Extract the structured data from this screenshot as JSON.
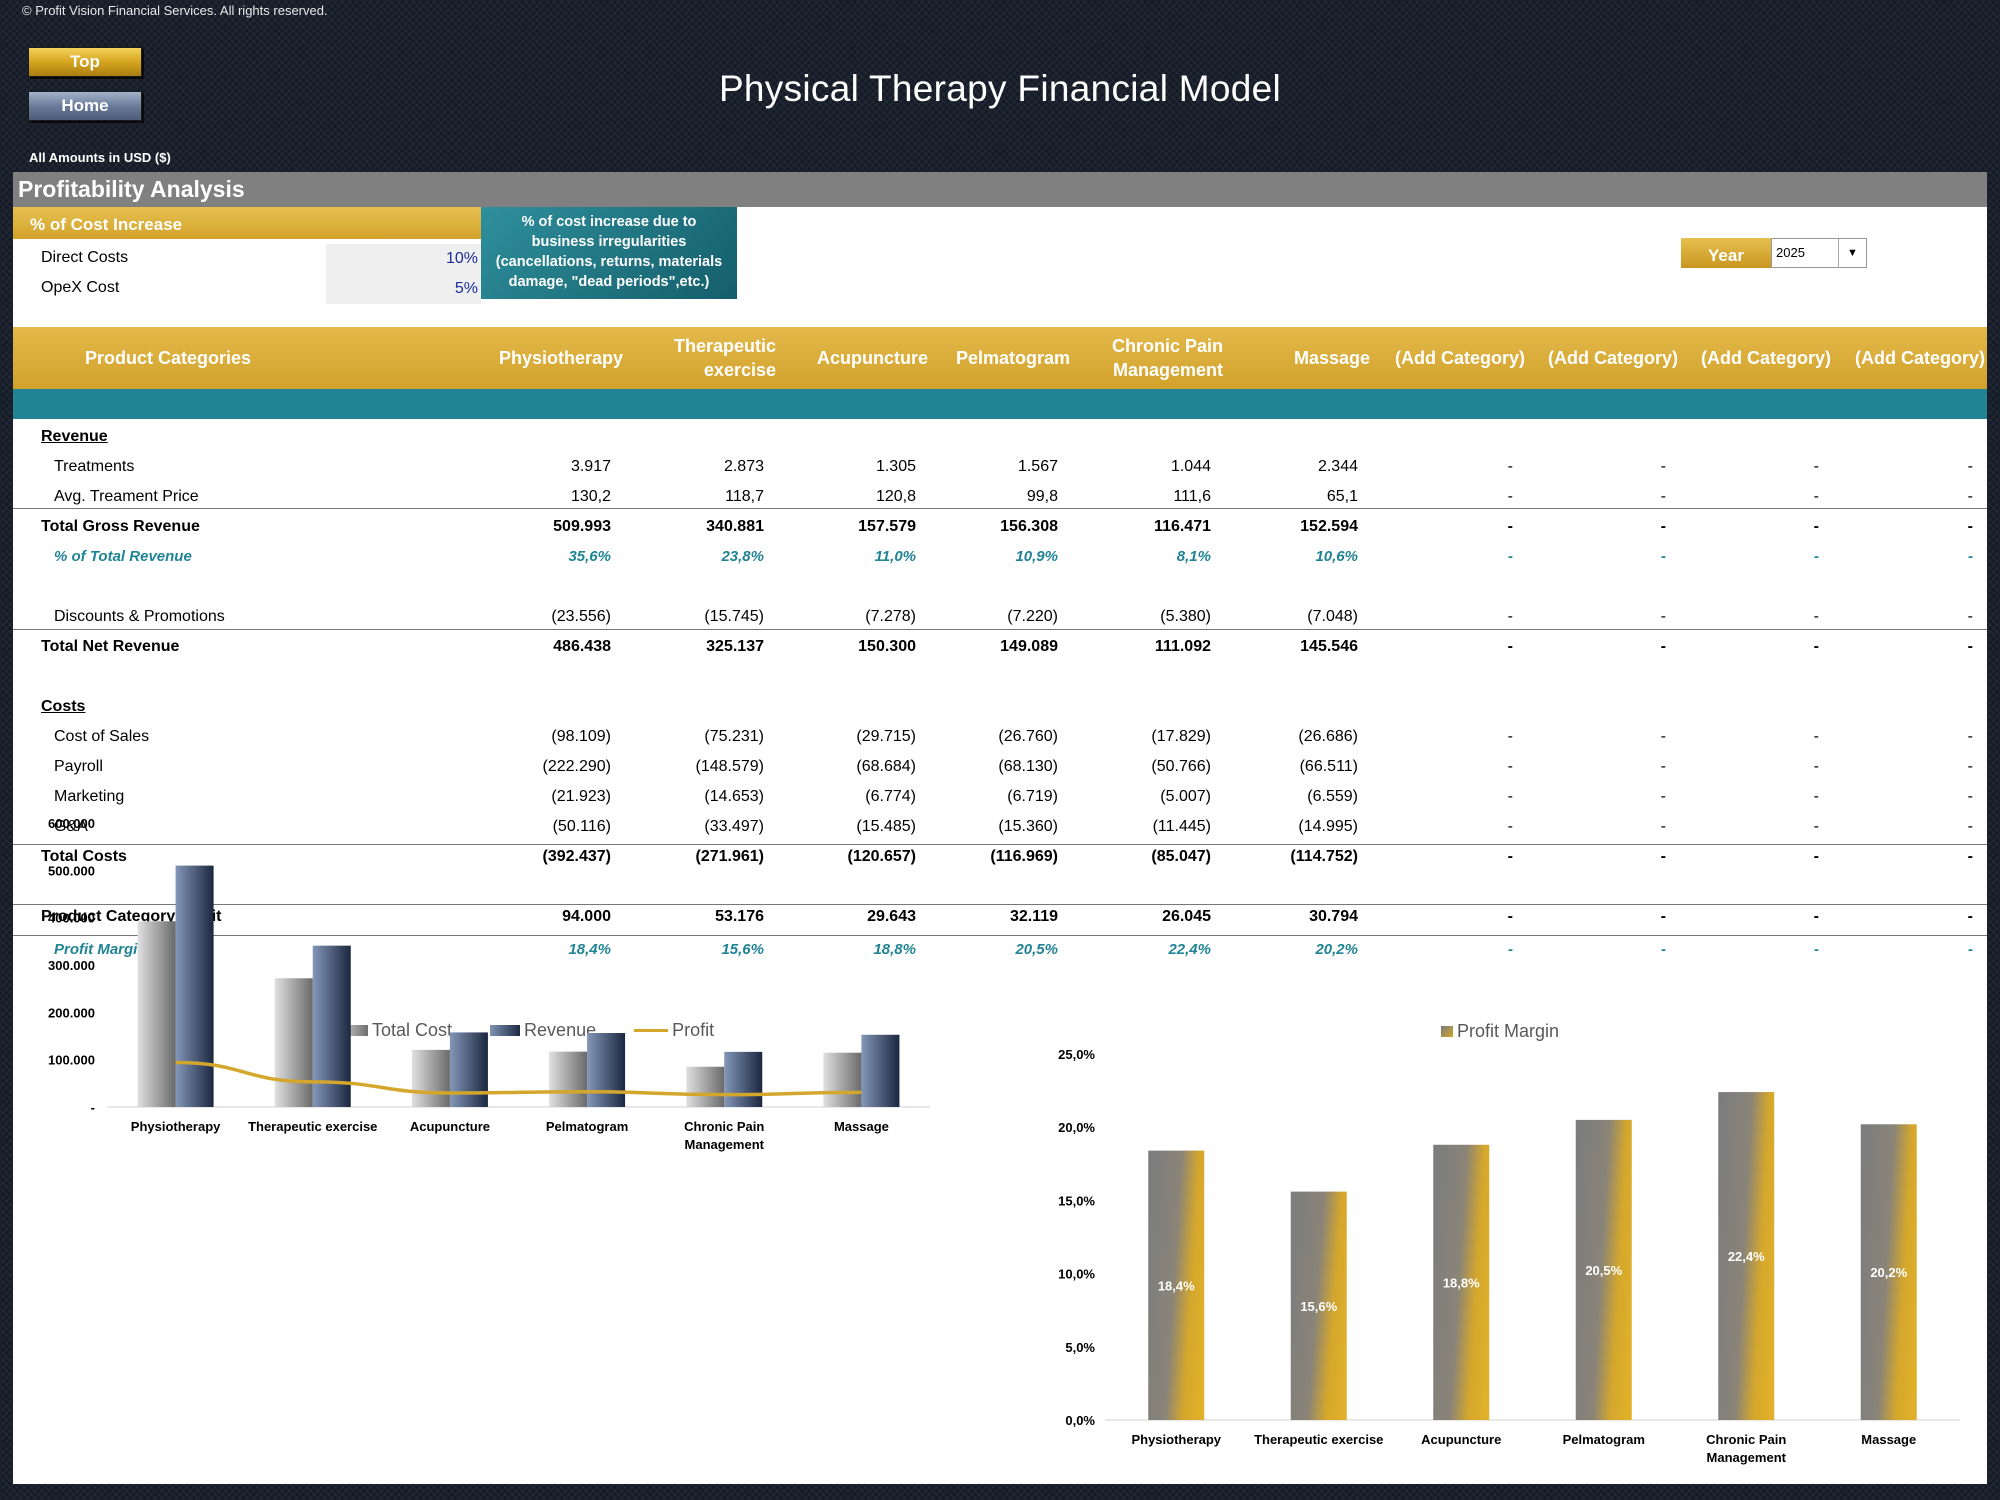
{
  "copyright": "© Profit Vision Financial Services. All rights reserved.",
  "nav": {
    "top": "Top",
    "home": "Home"
  },
  "title": "Physical Therapy Financial Model",
  "amounts_note": "All Amounts in  USD ($)",
  "section_title": "Profitability Analysis",
  "cost_increase": {
    "label": "% of Cost Increase",
    "rows": [
      {
        "label": "Direct Costs",
        "value": "10%"
      },
      {
        "label": "OpeX Cost",
        "value": "5%"
      }
    ],
    "note_lines": [
      "% of cost increase due to",
      "business irregularities",
      "(cancellations, returns, materials",
      "damage, \"dead periods\",etc.)"
    ]
  },
  "year_selector": {
    "label": "Year",
    "value": "2025"
  },
  "table": {
    "header_first": "Product Categories",
    "columns": [
      [
        "Physiotherapy"
      ],
      [
        "Therapeutic",
        "exercise"
      ],
      [
        "Acupuncture"
      ],
      [
        "Pelmatogram"
      ],
      [
        "Chronic Pain",
        "Management"
      ],
      [
        "Massage"
      ],
      [
        "(Add Category)"
      ],
      [
        "(Add Category)"
      ],
      [
        "(Add Category)"
      ],
      [
        "(Add Category)"
      ]
    ],
    "rows": [
      {
        "type": "section",
        "label": "Revenue",
        "values": []
      },
      {
        "type": "normal",
        "label": "Treatments",
        "values": [
          "3.917",
          "2.873",
          "1.305",
          "1.567",
          "1.044",
          "2.344",
          "-",
          "-",
          "-",
          "-"
        ]
      },
      {
        "type": "normal",
        "label": "Avg. Treament Price",
        "values": [
          "130,2",
          "118,7",
          "120,8",
          "99,8",
          "111,6",
          "65,1",
          "-",
          "-",
          "-",
          "-"
        ]
      },
      {
        "type": "bold",
        "label": "Total Gross Revenue",
        "values": [
          "509.993",
          "340.881",
          "157.579",
          "156.308",
          "116.471",
          "152.594",
          "-",
          "-",
          "-",
          "-"
        ]
      },
      {
        "type": "pct",
        "label": "% of Total Revenue",
        "values": [
          "35,6%",
          "23,8%",
          "11,0%",
          "10,9%",
          "8,1%",
          "10,6%",
          "-",
          "-",
          "-",
          "-"
        ]
      },
      {
        "type": "blank",
        "label": "",
        "values": []
      },
      {
        "type": "normal",
        "label": "Discounts & Promotions",
        "values": [
          "(23.556)",
          "(15.745)",
          "(7.278)",
          "(7.220)",
          "(5.380)",
          "(7.048)",
          "-",
          "-",
          "-",
          "-"
        ]
      },
      {
        "type": "bold",
        "label": "Total Net Revenue",
        "values": [
          "486.438",
          "325.137",
          "150.300",
          "149.089",
          "111.092",
          "145.546",
          "-",
          "-",
          "-",
          "-"
        ]
      },
      {
        "type": "blank",
        "label": "",
        "values": []
      },
      {
        "type": "section",
        "label": "Costs",
        "values": []
      },
      {
        "type": "normal",
        "label": "Cost of Sales",
        "values": [
          "(98.109)",
          "(75.231)",
          "(29.715)",
          "(26.760)",
          "(17.829)",
          "(26.686)",
          "-",
          "-",
          "-",
          "-"
        ]
      },
      {
        "type": "normal",
        "label": "Payroll",
        "values": [
          "(222.290)",
          "(148.579)",
          "(68.684)",
          "(68.130)",
          "(50.766)",
          "(66.511)",
          "-",
          "-",
          "-",
          "-"
        ]
      },
      {
        "type": "normal",
        "label": "Marketing",
        "values": [
          "(21.923)",
          "(14.653)",
          "(6.774)",
          "(6.719)",
          "(5.007)",
          "(6.559)",
          "-",
          "-",
          "-",
          "-"
        ]
      },
      {
        "type": "normal",
        "label": "G&A",
        "values": [
          "(50.116)",
          "(33.497)",
          "(15.485)",
          "(15.360)",
          "(11.445)",
          "(14.995)",
          "-",
          "-",
          "-",
          "-"
        ]
      },
      {
        "type": "bold",
        "label": "Total Costs",
        "values": [
          "(392.437)",
          "(271.961)",
          "(120.657)",
          "(116.969)",
          "(85.047)",
          "(114.752)",
          "-",
          "-",
          "-",
          "-"
        ]
      },
      {
        "type": "blank",
        "label": "",
        "values": []
      },
      {
        "type": "bold",
        "label": "Product Category Profit",
        "values": [
          "94.000",
          "53.176",
          "29.643",
          "32.119",
          "26.045",
          "30.794",
          "-",
          "-",
          "-",
          "-"
        ]
      },
      {
        "type": "pct",
        "label": "Profit Margin",
        "values": [
          "18,4%",
          "15,6%",
          "18,8%",
          "20,5%",
          "22,4%",
          "20,2%",
          "-",
          "-",
          "-",
          "-"
        ]
      }
    ]
  },
  "colors": {
    "gold": "#d4a72c",
    "teal": "#208494",
    "grey_bar": "#808080",
    "navy": "#2a3a58"
  },
  "chart_data": [
    {
      "type": "bar",
      "categories": [
        "Physiotherapy",
        "Therapeutic exercise",
        "Acupuncture",
        "Pelmatogram",
        "Chronic Pain Management",
        "Massage"
      ],
      "category_labels": [
        [
          "Physiotherapy"
        ],
        [
          "Therapeutic exercise"
        ],
        [
          "Acupuncture"
        ],
        [
          "Pelmatogram"
        ],
        [
          "Chronic Pain",
          "Management"
        ],
        [
          "Massage"
        ]
      ],
      "series": [
        {
          "name": "Total Cost",
          "kind": "bar",
          "values": [
            392437,
            271961,
            120657,
            116969,
            85047,
            114752
          ]
        },
        {
          "name": "Revenue",
          "kind": "bar",
          "values": [
            509993,
            340881,
            157579,
            156308,
            116471,
            152594
          ]
        },
        {
          "name": "Profit",
          "kind": "line",
          "values": [
            94000,
            53176,
            29643,
            32119,
            26045,
            30794
          ]
        }
      ],
      "ylim": [
        0,
        600000
      ],
      "yticks": [
        "-",
        "100.000",
        "200.000",
        "300.000",
        "400.000",
        "500.000",
        "600.000"
      ],
      "legend": "top-center",
      "grid": false
    },
    {
      "type": "bar",
      "categories": [
        "Physiotherapy",
        "Therapeutic exercise",
        "Acupuncture",
        "Pelmatogram",
        "Chronic Pain Management",
        "Massage"
      ],
      "category_labels": [
        [
          "Physiotherapy"
        ],
        [
          "Therapeutic exercise"
        ],
        [
          "Acupuncture"
        ],
        [
          "Pelmatogram"
        ],
        [
          "Chronic Pain",
          "Management"
        ],
        [
          "Massage"
        ]
      ],
      "series": [
        {
          "name": "Profit Margin",
          "kind": "bar",
          "values": [
            18.4,
            15.6,
            18.8,
            20.5,
            22.4,
            20.2
          ]
        }
      ],
      "data_labels": [
        "18,4%",
        "15,6%",
        "18,8%",
        "20,5%",
        "22,4%",
        "20,2%"
      ],
      "ylim": [
        0,
        25
      ],
      "yticks": [
        "0,0%",
        "5,0%",
        "10,0%",
        "15,0%",
        "20,0%",
        "25,0%"
      ],
      "legend": "top-center",
      "grid": false
    }
  ]
}
